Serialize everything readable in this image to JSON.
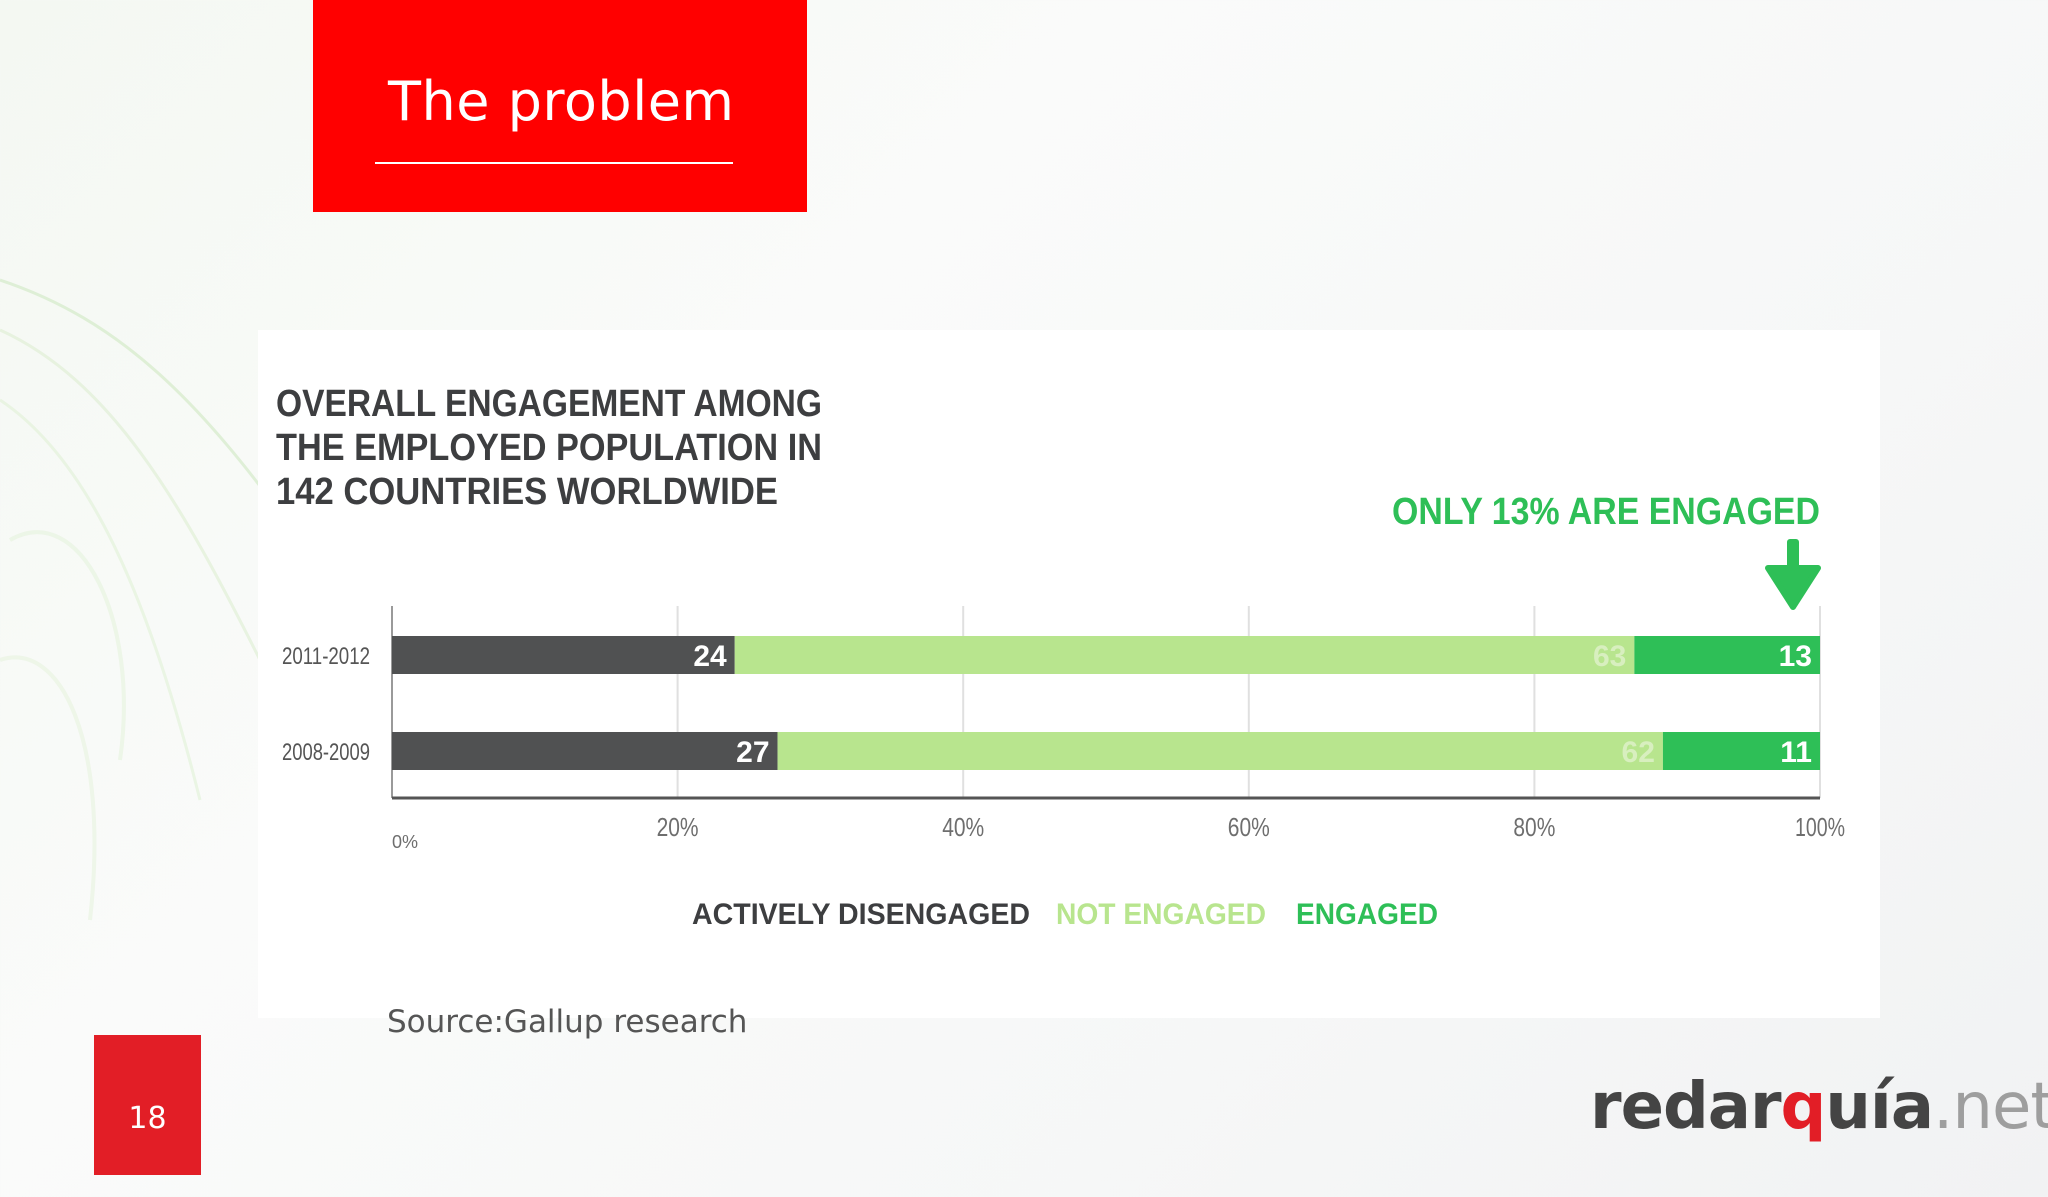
{
  "slide": {
    "title": "The problem",
    "source": "Source:Gallup research",
    "page_number": "18"
  },
  "logo": {
    "part1": "redar",
    "part2": "q",
    "part3": "uía",
    "part4": ".net"
  },
  "colors": {
    "title_bg": "#ff0000",
    "page_box": "#e21e26",
    "actively_disengaged": "#505152",
    "not_engaged": "#b8e58e",
    "engaged": "#2ebf57",
    "chart_title": "#3d3e40",
    "callout": "#2ebf57"
  },
  "chart_data": {
    "type": "bar",
    "orientation": "horizontal",
    "stacked": true,
    "title": "OVERALL ENGAGEMENT AMONG THE EMPLOYED POPULATION IN 142 COUNTRIES WORLDWIDE",
    "title_lines": [
      "OVERALL ENGAGEMENT AMONG",
      "THE EMPLOYED POPULATION IN",
      "142 COUNTRIES WORLDWIDE"
    ],
    "annotation": "ONLY 13% ARE ENGAGED",
    "categories": [
      "2011-2012",
      "2008-2009"
    ],
    "series": [
      {
        "name": "ACTIVELY DISENGAGED",
        "values": [
          24,
          27
        ],
        "labels": [
          "24",
          "27"
        ]
      },
      {
        "name": "NOT ENGAGED",
        "values": [
          63,
          62
        ],
        "labels": [
          "63",
          "62"
        ]
      },
      {
        "name": "ENGAGED",
        "values": [
          13,
          11
        ],
        "labels": [
          "13",
          "11"
        ]
      }
    ],
    "x_ticks": [
      0,
      20,
      40,
      60,
      80,
      100
    ],
    "x_tick_labels": [
      "0%",
      "20%",
      "40%",
      "60%",
      "80%",
      "100%"
    ],
    "xlim": [
      0,
      100
    ],
    "grid": true,
    "legend_position": "bottom"
  }
}
